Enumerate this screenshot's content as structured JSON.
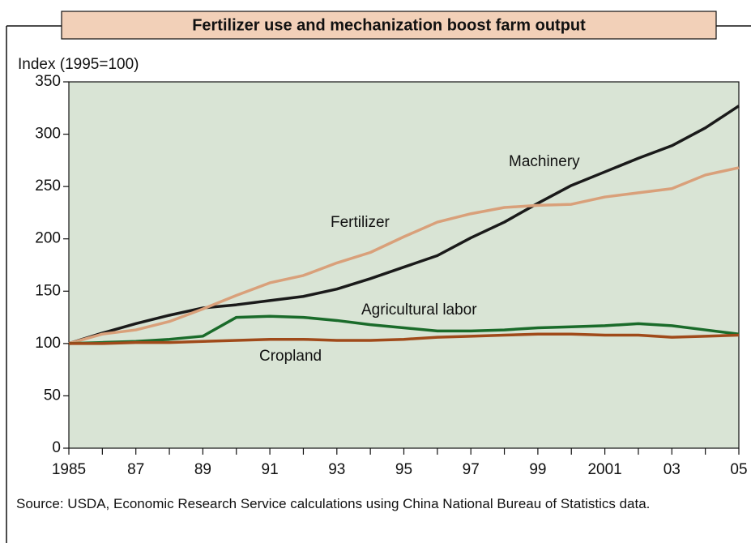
{
  "chart_data": {
    "type": "line",
    "title": "Fertilizer use and mechanization boost farm output",
    "y_axis_label": "Index (1995=100)",
    "source": "Source:  USDA, Economic Research Service calculations using China National Bureau of Statistics data.",
    "x": [
      1985,
      1986,
      1987,
      1988,
      1989,
      1990,
      1991,
      1992,
      1993,
      1994,
      1995,
      1996,
      1997,
      1998,
      1999,
      2000,
      2001,
      2002,
      2003,
      2004,
      2005
    ],
    "xlim": [
      1985,
      2005
    ],
    "xticks": [
      1985,
      {
        "value": 1987,
        "label": "87"
      },
      {
        "value": 1989,
        "label": "89"
      },
      {
        "value": 1991,
        "label": "91"
      },
      {
        "value": 1993,
        "label": "93"
      },
      {
        "value": 1995,
        "label": "95"
      },
      {
        "value": 1997,
        "label": "97"
      },
      {
        "value": 1999,
        "label": "99"
      },
      2001,
      {
        "value": 2003,
        "label": "03"
      },
      {
        "value": 2005,
        "label": "05"
      }
    ],
    "xticks_minor": [
      1986,
      1988,
      1990,
      1992,
      1994,
      1996,
      1998,
      2000,
      2002,
      2004
    ],
    "ylim": [
      0,
      350
    ],
    "yticks": [
      0,
      50,
      100,
      150,
      200,
      250,
      300,
      350
    ],
    "grid": false,
    "series": [
      {
        "name": "Machinery",
        "color": "#1a1a1a",
        "values": [
          100,
          110,
          119,
          127,
          134,
          137,
          141,
          145,
          152,
          162,
          173,
          184,
          201,
          216,
          234,
          251,
          264,
          277,
          289,
          306,
          327
        ]
      },
      {
        "name": "Fertilizer",
        "color": "#d9a07a",
        "values": [
          100,
          109,
          113,
          121,
          133,
          146,
          158,
          165,
          177,
          187,
          202,
          216,
          224,
          230,
          232,
          233,
          240,
          244,
          248,
          261,
          268
        ]
      },
      {
        "name": "Agricultural labor",
        "color": "#1a6b2a",
        "values": [
          100,
          101,
          102,
          104,
          107,
          125,
          126,
          125,
          122,
          118,
          115,
          112,
          112,
          113,
          115,
          116,
          117,
          119,
          117,
          113,
          109
        ]
      },
      {
        "name": "Cropland",
        "color": "#a04a1a",
        "values": [
          100,
          100,
          101,
          101,
          102,
          103,
          104,
          104,
          103,
          103,
          104,
          106,
          107,
          108,
          109,
          109,
          108,
          108,
          106,
          107,
          108
        ]
      }
    ]
  }
}
